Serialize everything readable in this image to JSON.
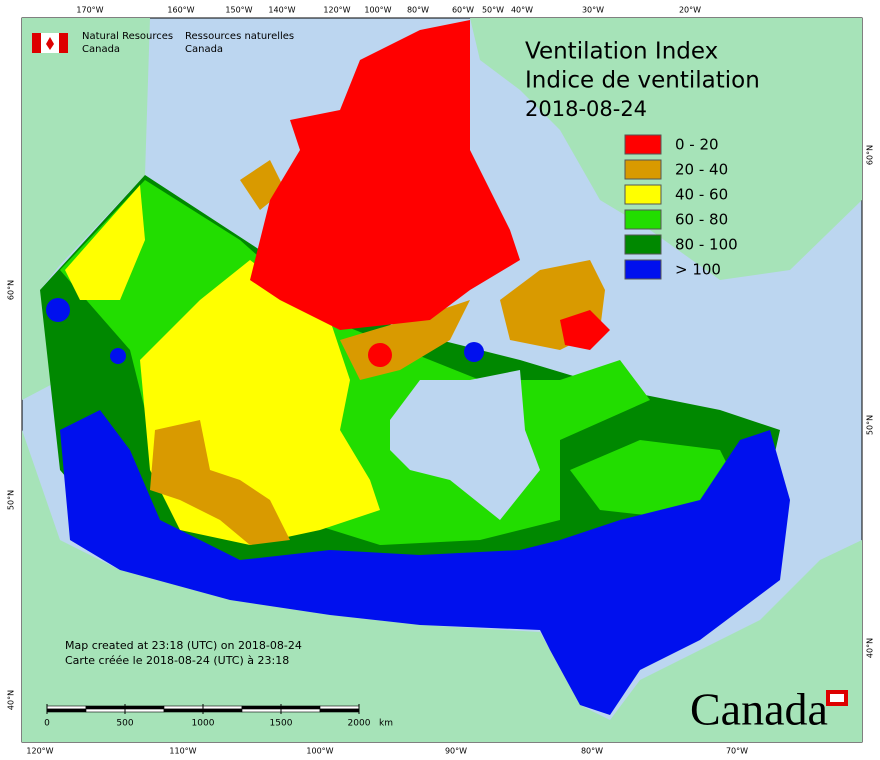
{
  "header": {
    "org_en": [
      "Natural Resources",
      "Canada"
    ],
    "org_fr": [
      "Ressources naturelles",
      "Canada"
    ]
  },
  "title": [
    "Ventilation Index",
    "Indice de ventilation"
  ],
  "date": "2018-08-24",
  "legend": [
    {
      "label": "0 - 20",
      "color": "#ff0000"
    },
    {
      "label": "20 - 40",
      "color": "#d99a00"
    },
    {
      "label": "40 - 60",
      "color": "#ffff00"
    },
    {
      "label": "60 - 80",
      "color": "#22dd00"
    },
    {
      "label": "80 - 100",
      "color": "#008800"
    },
    {
      "label": "> 100",
      "color": "#0010ee"
    }
  ],
  "top_labels": [
    "170°W",
    "160°W",
    "150°W",
    "140°W",
    "120°W",
    "100°W",
    "80°W",
    "60°W",
    "50°W",
    "40°W",
    "30°W",
    "20°W"
  ],
  "bottom_labels": [
    "120°W",
    "110°W",
    "100°W",
    "90°W",
    "80°W",
    "70°W"
  ],
  "right_labels": [
    "60°N",
    "50°N",
    "40°N"
  ],
  "left_labels": [
    "60°N",
    "50°N",
    "40°N"
  ],
  "note": [
    "Map created at 23:18 (UTC) on 2018-08-24",
    "Carte créée le 2018-08-24 (UTC) à 23:18"
  ],
  "scale": {
    "ticks": [
      0,
      500,
      1000,
      1500,
      2000
    ],
    "unit": "km"
  },
  "wordmark": "Canada"
}
